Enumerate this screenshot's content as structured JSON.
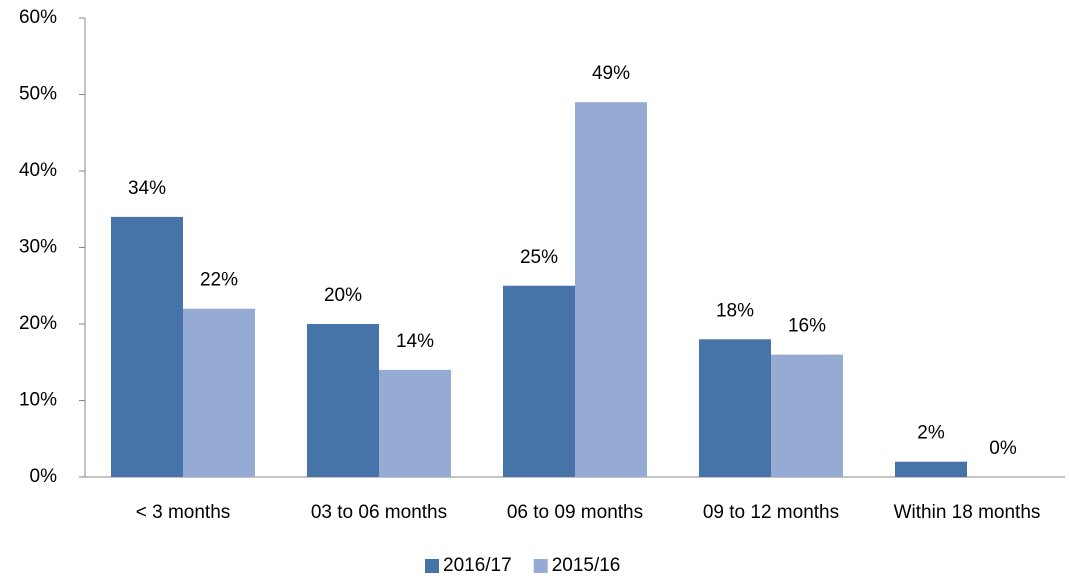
{
  "chart_data": {
    "type": "bar",
    "categories": [
      "< 3 months",
      "03 to 06 months",
      "06 to 09 months",
      "09 to 12 months",
      "Within 18 months"
    ],
    "series": [
      {
        "name": "2016/17",
        "color": "#4674a8",
        "values": [
          34,
          20,
          25,
          18,
          2
        ],
        "value_labels": [
          "34%",
          "20%",
          "25%",
          "18%",
          "2%"
        ]
      },
      {
        "name": "2015/16",
        "color": "#95abd3",
        "values": [
          22,
          14,
          49,
          16,
          0
        ],
        "value_labels": [
          "22%",
          "14%",
          "49%",
          "16%",
          "0%"
        ]
      }
    ],
    "ylim": [
      0,
      60
    ],
    "yticks": [
      {
        "value": 0,
        "label": "0%"
      },
      {
        "value": 10,
        "label": "10%"
      },
      {
        "value": 20,
        "label": "20%"
      },
      {
        "value": 30,
        "label": "30%"
      },
      {
        "value": 40,
        "label": "40%"
      },
      {
        "value": 50,
        "label": "50%"
      },
      {
        "value": 60,
        "label": "60%"
      }
    ],
    "grid": false,
    "legend": "bottom"
  }
}
